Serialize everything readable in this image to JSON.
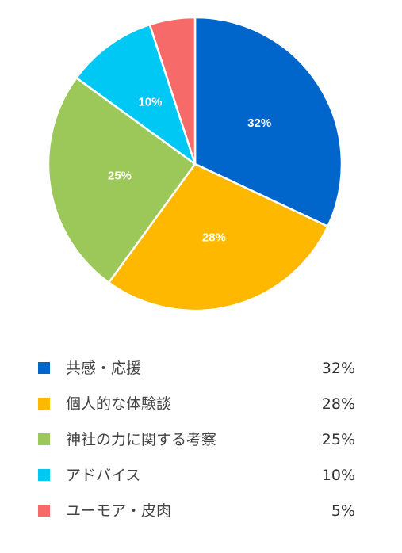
{
  "chart_data": {
    "type": "pie",
    "title": "",
    "slices": [
      {
        "label": "共感・応援",
        "value": 32,
        "display": "32%",
        "color": "#0066cc"
      },
      {
        "label": "個人的な体験談",
        "value": 28,
        "display": "28%",
        "color": "#ffb800"
      },
      {
        "label": "神社の力に関する考察",
        "value": 25,
        "display": "25%",
        "color": "#9cc85a"
      },
      {
        "label": "アドバイス",
        "value": 10,
        "display": "10%",
        "color": "#00c8f5"
      },
      {
        "label": "ユーモア・皮肉",
        "value": 5,
        "display": "5%",
        "color": "#f76a6a"
      }
    ],
    "legend_position": "bottom",
    "slice_border_color": "#ffffff"
  }
}
